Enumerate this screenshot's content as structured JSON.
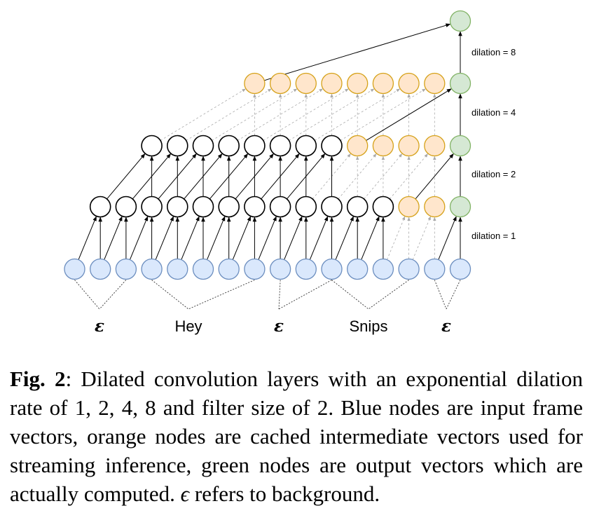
{
  "diagram": {
    "dilation_labels": [
      "dilation = 8",
      "dilation = 4",
      "dilation = 2",
      "dilation = 1"
    ],
    "word_labels": [
      "ε",
      "Hey",
      "ε",
      "Snips",
      "ε"
    ],
    "colors": {
      "input_fill": "#dae8fc",
      "input_stroke": "#6c8ebf",
      "cached_fill": "#ffe6cc",
      "cached_stroke": "#d6a21a",
      "output_fill": "#d5e8d4",
      "output_stroke": "#82b366",
      "plain_stroke": "#000000",
      "active_edge": "#000000",
      "inactive_edge": "#aaaaaa"
    },
    "layers": [
      {
        "name": "input",
        "nodes": [
          "input",
          "input",
          "input",
          "input",
          "input",
          "input",
          "input",
          "input",
          "input",
          "input",
          "input",
          "input",
          "input",
          "input",
          "input",
          "input"
        ]
      },
      {
        "name": "layer-1",
        "nodes": [
          "plain",
          "plain",
          "plain",
          "plain",
          "plain",
          "plain",
          "plain",
          "plain",
          "plain",
          "plain",
          "plain",
          "plain",
          "cached",
          "cached",
          "output"
        ]
      },
      {
        "name": "layer-2",
        "nodes": [
          "plain",
          "plain",
          "plain",
          "plain",
          "plain",
          "plain",
          "plain",
          "plain",
          "cached",
          "cached",
          "cached",
          "cached",
          "output"
        ]
      },
      {
        "name": "layer-3",
        "nodes": [
          "cached",
          "cached",
          "cached",
          "cached",
          "cached",
          "cached",
          "cached",
          "cached",
          "output"
        ]
      },
      {
        "name": "layer-4",
        "nodes": [
          "output"
        ]
      }
    ]
  },
  "caption": {
    "fig_label": "Fig. 2",
    "text_before_eps": ": Dilated convolution layers with an exponential dilation rate of 1, 2, 4, 8 and filter size of 2. Blue nodes are input frame vectors, orange nodes are cached intermediate vectors used for streaming inference, green nodes are output vectors which are actually computed. ",
    "eps": "ϵ",
    "text_after_eps": " refers to background."
  }
}
